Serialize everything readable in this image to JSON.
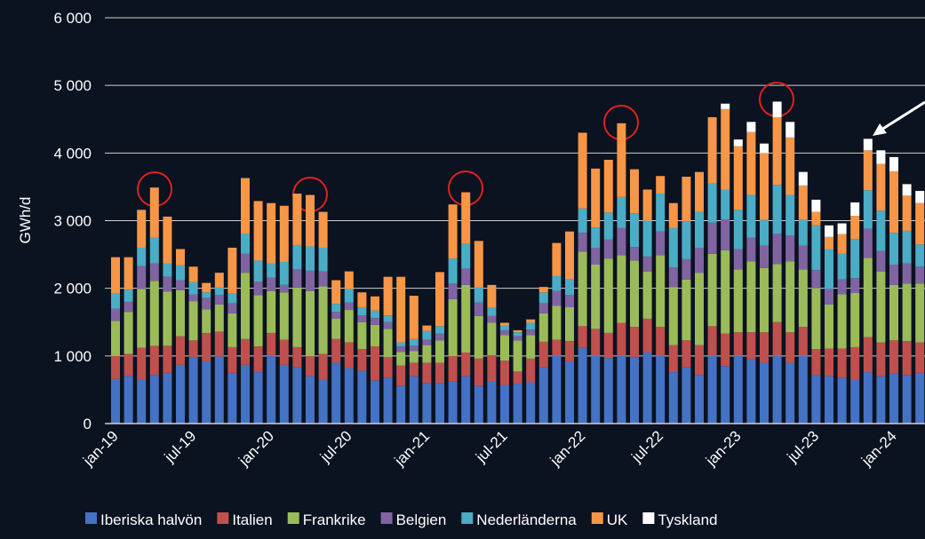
{
  "chart_data": {
    "type": "stacked_bar",
    "y_label": "GWh/d",
    "ylim": [
      0,
      6000
    ],
    "yticks": [
      0,
      {
        "value": 1000,
        "label": "1 000"
      },
      {
        "value": 2000,
        "label": "2 000"
      },
      {
        "value": 3000,
        "label": "3 000"
      },
      {
        "value": 4000,
        "label": "4 000"
      },
      {
        "value": 5000,
        "label": "5 000"
      },
      {
        "value": 6000,
        "label": "6 000"
      }
    ],
    "grid": true,
    "legend": "bottom",
    "categories": [
      "jan-19",
      null,
      null,
      null,
      null,
      null,
      "jul-19",
      null,
      null,
      null,
      null,
      null,
      "jan-20",
      null,
      null,
      null,
      null,
      null,
      "jul-20",
      null,
      null,
      null,
      null,
      null,
      "jan-21",
      null,
      null,
      null,
      null,
      null,
      "jul-21",
      null,
      null,
      null,
      null,
      null,
      "jan-22",
      null,
      null,
      null,
      null,
      null,
      "jul-22",
      null,
      null,
      null,
      null,
      null,
      "jan-23",
      null,
      null,
      null,
      null,
      null,
      "jul-23",
      null,
      null,
      null,
      null,
      null,
      "jan-24",
      null,
      null
    ],
    "series": [
      {
        "name": "Iberiska halvön",
        "color": "#4472c4",
        "values": [
          660,
          700,
          650,
          720,
          750,
          870,
          980,
          920,
          990,
          750,
          870,
          760,
          1000,
          870,
          830,
          700,
          650,
          900,
          820,
          780,
          640,
          680,
          560,
          700,
          600,
          600,
          620,
          700,
          560,
          630,
          570,
          590,
          610,
          830,
          1000,
          920,
          1120,
          1000,
          970,
          1000,
          980,
          1050,
          1000,
          760,
          830,
          720,
          1000,
          850,
          1000,
          950,
          900,
          1000,
          900,
          1000,
          720,
          700,
          680,
          650,
          760,
          700,
          740,
          720,
          750
        ]
      },
      {
        "name": "Italien",
        "color": "#c0504d",
        "values": [
          340,
          330,
          470,
          430,
          400,
          420,
          250,
          420,
          370,
          380,
          380,
          380,
          340,
          370,
          300,
          300,
          380,
          350,
          380,
          320,
          500,
          300,
          300,
          200,
          300,
          300,
          380,
          350,
          400,
          380,
          360,
          180,
          350,
          380,
          240,
          300,
          320,
          400,
          370,
          490,
          450,
          500,
          430,
          400,
          400,
          440,
          440,
          480,
          350,
          400,
          450,
          500,
          450,
          430,
          380,
          410,
          430,
          480,
          520,
          500,
          490,
          500,
          450
        ]
      },
      {
        "name": "Frankrike",
        "color": "#9bbb59",
        "values": [
          520,
          620,
          870,
          960,
          800,
          680,
          580,
          350,
          400,
          500,
          980,
          760,
          620,
          700,
          880,
          960,
          1000,
          300,
          480,
          400,
          320,
          420,
          200,
          170,
          260,
          330,
          840,
          1000,
          630,
          480,
          380,
          460,
          350,
          420,
          500,
          500,
          1100,
          950,
          1100,
          1000,
          980,
          700,
          1060,
          860,
          900,
          1070,
          1070,
          1230,
          930,
          1050,
          950,
          860,
          1050,
          850,
          900,
          650,
          800,
          800,
          1170,
          1050,
          820,
          850,
          870
        ]
      },
      {
        "name": "Belgien",
        "color": "#8064a2",
        "values": [
          180,
          150,
          340,
          260,
          220,
          150,
          100,
          170,
          140,
          150,
          280,
          200,
          200,
          110,
          270,
          300,
          220,
          100,
          110,
          100,
          100,
          100,
          80,
          80,
          80,
          100,
          230,
          240,
          200,
          100,
          70,
          60,
          80,
          150,
          220,
          180,
          280,
          250,
          280,
          400,
          200,
          220,
          350,
          290,
          300,
          370,
          460,
          460,
          300,
          350,
          330,
          450,
          380,
          350,
          270,
          230,
          220,
          220,
          430,
          300,
          300,
          300,
          250
        ]
      },
      {
        "name": "Nederländerna",
        "color": "#4bacc6",
        "values": [
          220,
          180,
          270,
          380,
          200,
          220,
          180,
          80,
          110,
          140,
          300,
          310,
          210,
          340,
          360,
          360,
          350,
          120,
          200,
          120,
          110,
          100,
          60,
          100,
          130,
          110,
          370,
          370,
          220,
          120,
          70,
          60,
          100,
          160,
          220,
          240,
          360,
          300,
          400,
          460,
          500,
          530,
          560,
          580,
          560,
          530,
          580,
          440,
          580,
          630,
          380,
          720,
          600,
          380,
          660,
          590,
          380,
          580,
          570,
          600,
          470,
          480,
          330
        ]
      },
      {
        "name": "UK",
        "color": "#f79646",
        "values": [
          540,
          480,
          560,
          740,
          690,
          240,
          230,
          140,
          220,
          680,
          820,
          880,
          890,
          830,
          760,
          760,
          530,
          350,
          260,
          220,
          210,
          570,
          970,
          640,
          80,
          800,
          800,
          760,
          690,
          340,
          40,
          30,
          50,
          80,
          490,
          700,
          1120,
          870,
          780,
          1090,
          650,
          460,
          260,
          370,
          660,
          590,
          980,
          1190,
          940,
          930,
          990,
          1000,
          850,
          510,
          200,
          180,
          290,
          340,
          590,
          690,
          910,
          520,
          610
        ]
      },
      {
        "name": "Tyskland",
        "color": "#ffffff",
        "values": [
          0,
          0,
          0,
          0,
          0,
          0,
          0,
          0,
          0,
          0,
          0,
          0,
          0,
          0,
          0,
          0,
          0,
          0,
          0,
          0,
          0,
          0,
          0,
          0,
          0,
          0,
          0,
          0,
          0,
          0,
          0,
          0,
          0,
          0,
          0,
          0,
          0,
          0,
          0,
          0,
          0,
          0,
          0,
          0,
          0,
          0,
          0,
          80,
          100,
          150,
          140,
          230,
          230,
          200,
          180,
          170,
          160,
          200,
          170,
          200,
          210,
          170,
          180
        ]
      }
    ]
  }
}
